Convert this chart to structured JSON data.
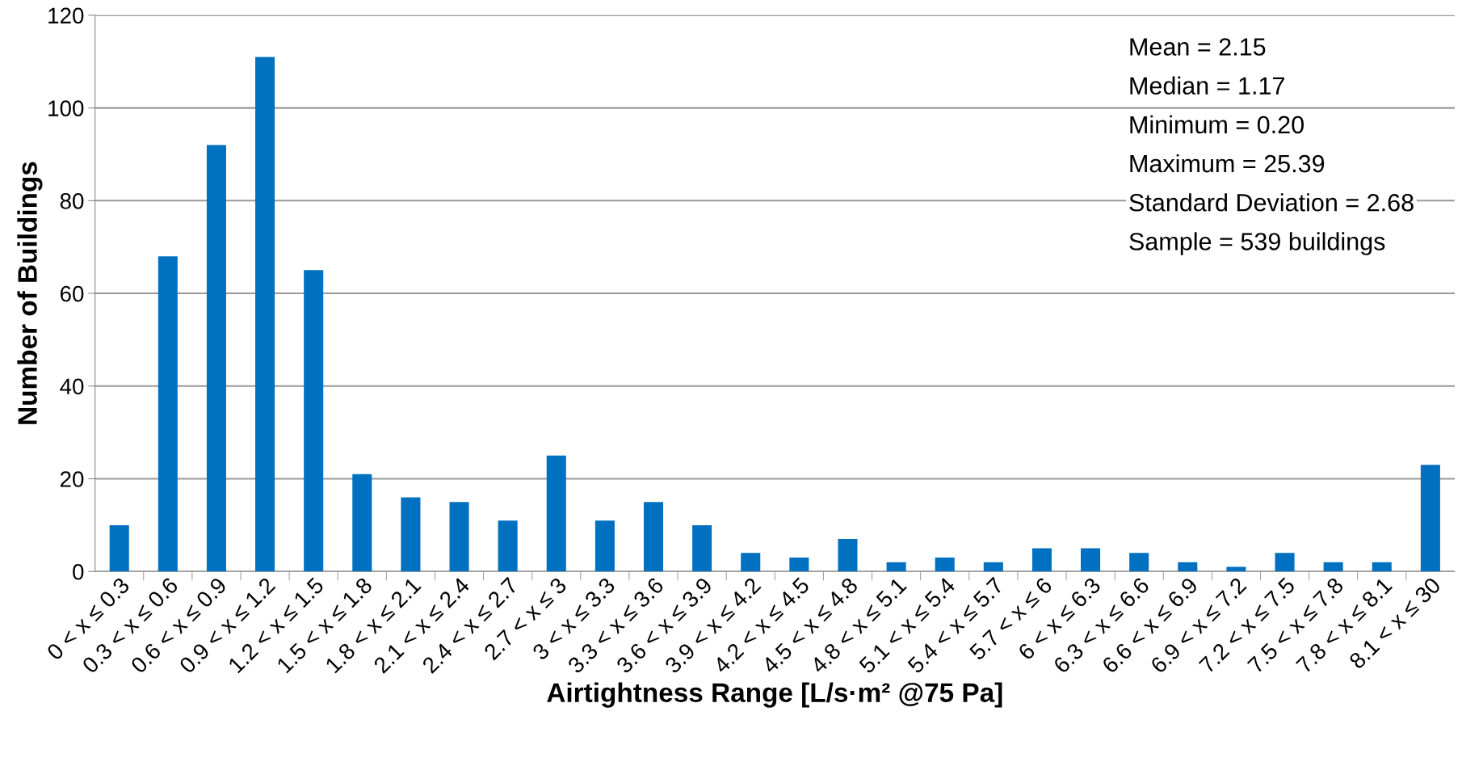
{
  "chart_data": {
    "type": "bar",
    "xlabel": "Airtightness Range [L/s·m² @75 Pa]",
    "ylabel": "Number of Buildings",
    "categories": [
      "0 < x ≤ 0.3",
      "0.3 < x ≤ 0.6",
      "0.6 < x ≤ 0.9",
      "0.9 < x ≤ 1.2",
      "1.2 < x ≤ 1.5",
      "1.5 < x ≤ 1.8",
      "1.8 < x ≤ 2.1",
      "2.1 < x ≤ 2.4",
      "2.4 < x ≤ 2.7",
      "2.7 < x ≤ 3",
      "3 < x ≤ 3.3",
      "3.3 < x ≤ 3.6",
      "3.6 < x ≤ 3.9",
      "3.9 < x ≤ 4.2",
      "4.2 < x ≤ 4.5",
      "4.5 < x ≤ 4.8",
      "4.8 < x ≤ 5.1",
      "5.1 < x ≤ 5.4",
      "5.4 < x ≤ 5.7",
      "5.7 < x ≤ 6",
      "6 < x ≤ 6.3",
      "6.3 < x ≤ 6.6",
      "6.6 < x ≤ 6.9",
      "6.9 < x ≤ 7.2",
      "7.2 < x ≤ 7.5",
      "7.5 < x ≤ 7.8",
      "7.8 < x ≤ 8.1",
      "8.1 < x ≤ 30"
    ],
    "values": [
      10,
      68,
      92,
      111,
      65,
      21,
      16,
      15,
      11,
      25,
      11,
      15,
      10,
      4,
      3,
      7,
      2,
      3,
      2,
      5,
      5,
      4,
      2,
      1,
      4,
      2,
      2,
      23
    ],
    "color": "#0070c0",
    "ylim": [
      0,
      120
    ],
    "yticks": [
      0,
      20,
      40,
      60,
      80,
      100,
      120
    ],
    "grid": "y",
    "legend": false,
    "annotations": [
      "Mean = 2.15",
      "Median = 1.17",
      "Minimum = 0.20",
      "Maximum = 25.39",
      "Standard Deviation = 2.68",
      "Sample = 539 buildings"
    ]
  }
}
